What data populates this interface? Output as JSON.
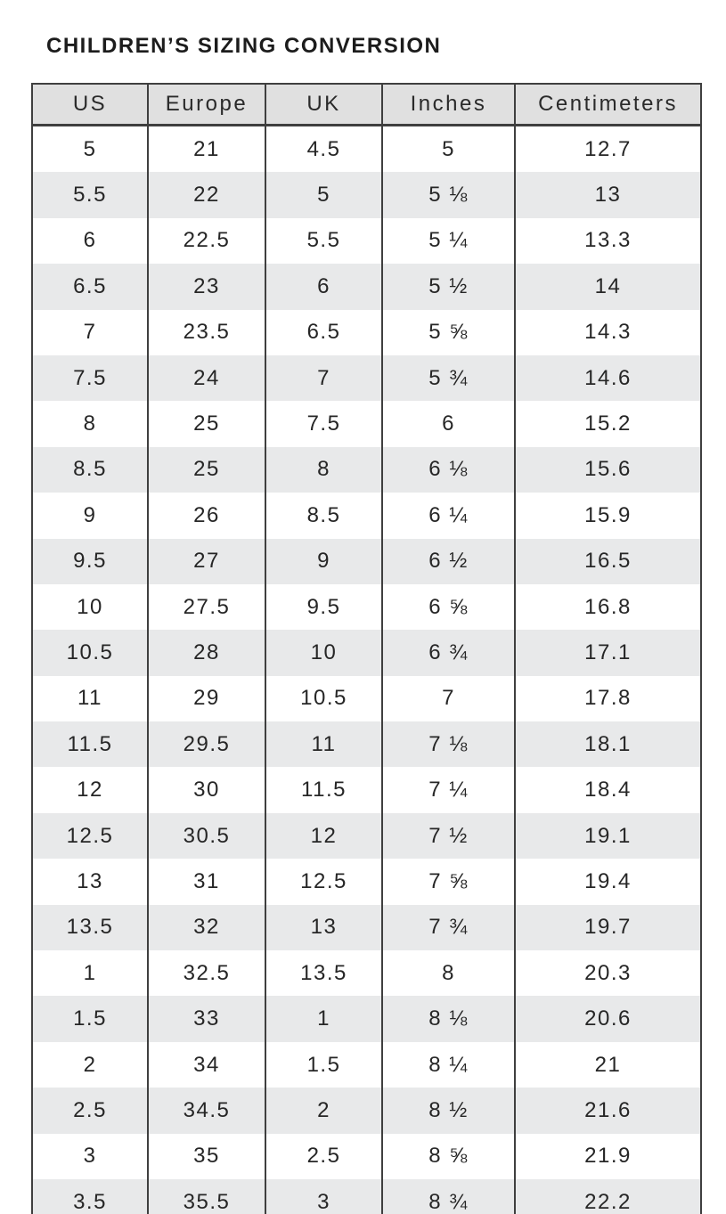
{
  "title": "CHILDREN’S SIZING CONVERSION",
  "colors": {
    "header_bg": "#e0e0e0",
    "stripe_bg": "#e8e9ea",
    "border": "#3f3f3f",
    "title_text": "#1c1c1c",
    "cell_text": "#262626",
    "page_bg": "#ffffff"
  },
  "chart_data": {
    "type": "table",
    "title": "CHILDREN’S SIZING CONVERSION",
    "columns": [
      "US",
      "Europe",
      "UK",
      "Inches",
      "Centimeters"
    ],
    "rows": [
      [
        "5",
        "21",
        "4.5",
        "5",
        "12.7"
      ],
      [
        "5.5",
        "22",
        "5",
        "5 ⅛",
        "13"
      ],
      [
        "6",
        "22.5",
        "5.5",
        "5 ¼",
        "13.3"
      ],
      [
        "6.5",
        "23",
        "6",
        "5 ½",
        "14"
      ],
      [
        "7",
        "23.5",
        "6.5",
        "5 ⅝",
        "14.3"
      ],
      [
        "7.5",
        "24",
        "7",
        "5 ¾",
        "14.6"
      ],
      [
        "8",
        "25",
        "7.5",
        "6",
        "15.2"
      ],
      [
        "8.5",
        "25",
        "8",
        "6 ⅛",
        "15.6"
      ],
      [
        "9",
        "26",
        "8.5",
        "6 ¼",
        "15.9"
      ],
      [
        "9.5",
        "27",
        "9",
        "6 ½",
        "16.5"
      ],
      [
        "10",
        "27.5",
        "9.5",
        "6 ⅝",
        "16.8"
      ],
      [
        "10.5",
        "28",
        "10",
        "6 ¾",
        "17.1"
      ],
      [
        "11",
        "29",
        "10.5",
        "7",
        "17.8"
      ],
      [
        "11.5",
        "29.5",
        "11",
        "7 ⅛",
        "18.1"
      ],
      [
        "12",
        "30",
        "11.5",
        "7 ¼",
        "18.4"
      ],
      [
        "12.5",
        "30.5",
        "12",
        "7 ½",
        "19.1"
      ],
      [
        "13",
        "31",
        "12.5",
        "7 ⅝",
        "19.4"
      ],
      [
        "13.5",
        "32",
        "13",
        "7 ¾",
        "19.7"
      ],
      [
        "1",
        "32.5",
        "13.5",
        "8",
        "20.3"
      ],
      [
        "1.5",
        "33",
        "1",
        "8 ⅛",
        "20.6"
      ],
      [
        "2",
        "34",
        "1.5",
        "8 ¼",
        "21"
      ],
      [
        "2.5",
        "34.5",
        "2",
        "8 ½",
        "21.6"
      ],
      [
        "3",
        "35",
        "2.5",
        "8 ⅝",
        "21.9"
      ],
      [
        "3.5",
        "35.5",
        "3",
        "8 ¾",
        "22.2"
      ]
    ]
  }
}
